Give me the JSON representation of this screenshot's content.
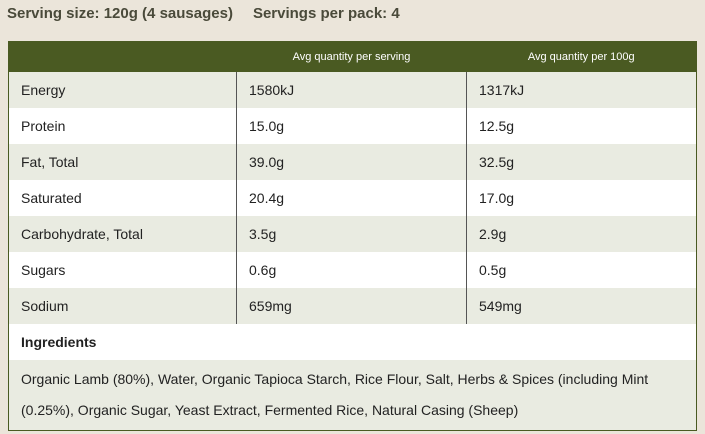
{
  "serving": {
    "size": "Serving size: 120g (4 sausages)",
    "per_pack": "Servings per pack: 4"
  },
  "header": [
    "",
    "Avg quantity per serving",
    "Avg quantity per 100g"
  ],
  "rows": [
    [
      "Energy",
      "1580kJ",
      "1317kJ"
    ],
    [
      "Protein",
      "15.0g",
      "12.5g"
    ],
    [
      "Fat, Total",
      "39.0g",
      "32.5g"
    ],
    [
      "Saturated",
      "20.4g",
      "17.0g"
    ],
    [
      "Carbohydrate, Total",
      "3.5g",
      "2.9g"
    ],
    [
      "Sugars",
      "0.6g",
      "0.5g"
    ],
    [
      "Sodium",
      "659mg",
      "549mg"
    ]
  ],
  "ingredients": {
    "title": "Ingredients",
    "text": "Organic Lamb (80%), Water, Organic Tapioca Starch, Rice Flour, Salt, Herbs & Spices (including Mint (0.25%), Organic Sugar, Yeast Extract, Fermented Rice, Natural Casing (Sheep)"
  },
  "colors": {
    "header": "#4a5a22",
    "alt_row": "#e9ebe1"
  }
}
